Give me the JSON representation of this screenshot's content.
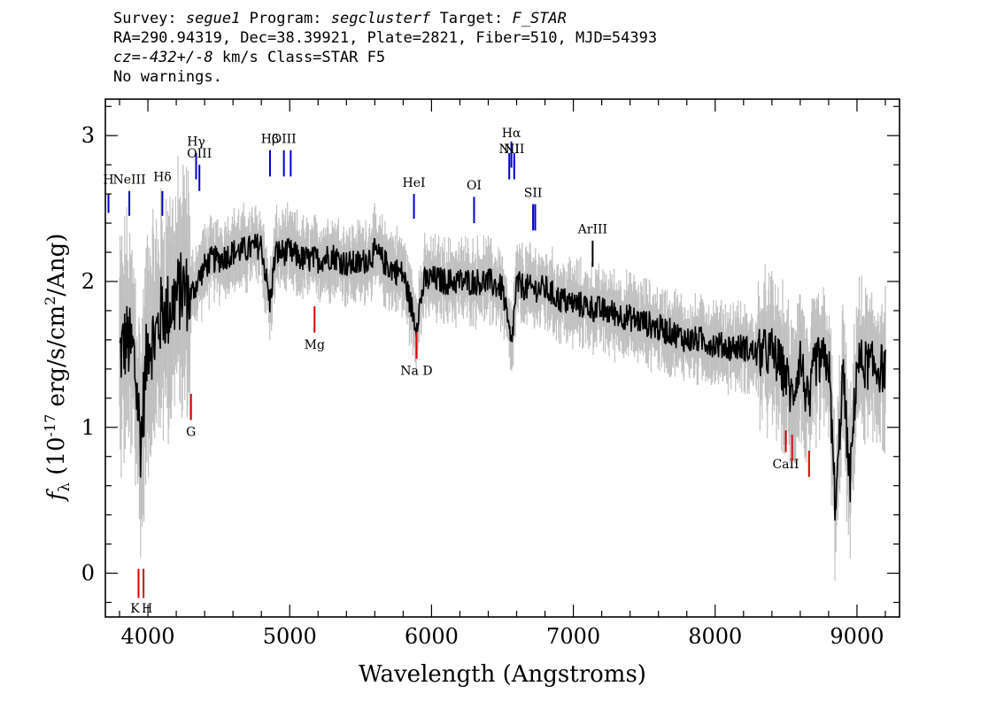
{
  "header": {
    "survey_label": "Survey:",
    "survey": "segue1",
    "program_label": "Program:",
    "program": "segclusterf",
    "target_label": "Target:",
    "target": "F_STAR",
    "line2": "RA=290.94319, Dec=38.39921, Plate=2821, Fiber=510, MJD=54393",
    "cz": "cz=-432+/-8",
    "cz_rest": " km/s Class=STAR F5",
    "warnings": "No warnings."
  },
  "chart_data": {
    "type": "line",
    "xlabel": "Wavelength (Angstroms)",
    "ylabel_prefix": "f",
    "ylabel_sub": "λ",
    "ylabel_rest": " (10",
    "ylabel_exp": "-17",
    "ylabel_units": " erg/s/cm",
    "ylabel_sq": "2",
    "ylabel_end": "/Ang)",
    "xlim": [
      3700,
      9300
    ],
    "ylim": [
      -0.3,
      3.25
    ],
    "xticks": [
      4000,
      5000,
      6000,
      7000,
      8000,
      9000
    ],
    "xtick_labels": [
      "4000",
      "5000",
      "6000",
      "7000",
      "8000",
      "9000"
    ],
    "yticks": [
      0,
      1,
      2,
      3
    ],
    "ytick_labels": [
      "0",
      "1",
      "2",
      "3"
    ],
    "colors": {
      "spectrum": "#000000",
      "error_band": "#c0c0c0",
      "emission": "#0000cc",
      "absorption": "#dd0000",
      "other": "#000000"
    },
    "spectrum": {
      "x": [
        3800,
        3850,
        3900,
        3950,
        4000,
        4050,
        4100,
        4150,
        4200,
        4250,
        4300,
        4350,
        4400,
        4450,
        4500,
        4600,
        4700,
        4800,
        4860,
        4900,
        5000,
        5100,
        5200,
        5300,
        5400,
        5500,
        5600,
        5700,
        5800,
        5890,
        5950,
        6000,
        6100,
        6200,
        6300,
        6400,
        6500,
        6563,
        6600,
        6700,
        6800,
        6900,
        7000,
        7100,
        7200,
        7300,
        7400,
        7500,
        7600,
        7700,
        7800,
        7900,
        8000,
        8100,
        8200,
        8300,
        8400,
        8500,
        8542,
        8600,
        8662,
        8700,
        8800,
        8850,
        8900,
        8950,
        9000,
        9100,
        9200
      ],
      "y": [
        1.5,
        1.6,
        1.5,
        0.9,
        1.6,
        1.6,
        1.8,
        1.8,
        1.9,
        1.95,
        1.9,
        2.0,
        2.1,
        2.15,
        2.15,
        2.2,
        2.22,
        2.25,
        1.85,
        2.2,
        2.2,
        2.15,
        2.15,
        2.18,
        2.12,
        2.12,
        2.2,
        2.1,
        2.05,
        1.7,
        2.0,
        2.02,
        2.0,
        2.0,
        2.0,
        2.0,
        1.95,
        1.55,
        1.98,
        1.95,
        1.95,
        1.88,
        1.85,
        1.83,
        1.8,
        1.78,
        1.75,
        1.72,
        1.68,
        1.65,
        1.6,
        1.6,
        1.57,
        1.55,
        1.55,
        1.5,
        1.52,
        1.35,
        1.2,
        1.48,
        1.1,
        1.45,
        1.45,
        0.4,
        1.4,
        0.6,
        1.45,
        1.42,
        1.4
      ]
    },
    "lines": [
      {
        "label": "H",
        "x": 3722,
        "y0": 2.47,
        "y1": 2.6,
        "kind": "emission",
        "label_y": 2.67
      },
      {
        "label": "NeIII",
        "x": 3869,
        "y0": 2.45,
        "y1": 2.62,
        "kind": "emission",
        "label_y": 2.67
      },
      {
        "label": "Hδ",
        "x": 4102,
        "y0": 2.45,
        "y1": 2.62,
        "kind": "emission",
        "label_y": 2.69
      },
      {
        "label": "Hγ",
        "x": 4340,
        "y0": 2.7,
        "y1": 2.88,
        "kind": "emission",
        "label_y": 2.93
      },
      {
        "label": "OIII",
        "x": 4363,
        "y0": 2.62,
        "y1": 2.8,
        "kind": "emission",
        "label_y": 2.85
      },
      {
        "label": "Hβ",
        "x": 4861,
        "y0": 2.72,
        "y1": 2.9,
        "kind": "emission",
        "label_y": 2.95
      },
      {
        "label": "OIII",
        "x": 4959,
        "y0": 2.72,
        "y1": 2.9,
        "kind": "emission",
        "label_y": 2.95
      },
      {
        "label": "",
        "x": 5007,
        "y0": 2.72,
        "y1": 2.9,
        "kind": "emission",
        "label_y": 2.95
      },
      {
        "label": "HeI",
        "x": 5876,
        "y0": 2.43,
        "y1": 2.6,
        "kind": "emission",
        "label_y": 2.65
      },
      {
        "label": "OI",
        "x": 6300,
        "y0": 2.4,
        "y1": 2.58,
        "kind": "emission",
        "label_y": 2.63
      },
      {
        "label": "NII",
        "x": 6548,
        "y0": 2.7,
        "y1": 2.88,
        "kind": "emission",
        "label_y": 2.88
      },
      {
        "label": "Hα",
        "x": 6563,
        "y0": 2.78,
        "y1": 2.96,
        "kind": "emission",
        "label_y": 2.99
      },
      {
        "label": "NII",
        "x": 6583,
        "y0": 2.7,
        "y1": 2.88,
        "kind": "emission",
        "label_y": 2.88
      },
      {
        "label": "SII",
        "x": 6716,
        "y0": 2.35,
        "y1": 2.53,
        "kind": "emission",
        "label_y": 2.58
      },
      {
        "label": "",
        "x": 6731,
        "y0": 2.35,
        "y1": 2.53,
        "kind": "emission",
        "label_y": 2.58
      },
      {
        "label": "ArIII",
        "x": 7136,
        "y0": 2.1,
        "y1": 2.28,
        "kind": "other",
        "label_y": 2.33
      },
      {
        "label": "K",
        "x": 3934,
        "y0": -0.17,
        "y1": 0.03,
        "kind": "absorption",
        "label_y": -0.27,
        "label_dx": -4
      },
      {
        "label": "H",
        "x": 3969,
        "y0": -0.17,
        "y1": 0.03,
        "kind": "absorption",
        "label_y": -0.27,
        "label_dx": 4
      },
      {
        "label": "G",
        "x": 4304,
        "y0": 1.05,
        "y1": 1.23,
        "kind": "absorption",
        "label_y": 0.94
      },
      {
        "label": "Mg",
        "x": 5175,
        "y0": 1.65,
        "y1": 1.83,
        "kind": "absorption",
        "label_y": 1.54
      },
      {
        "label": "Na D",
        "x": 5894,
        "y0": 1.47,
        "y1": 1.65,
        "kind": "absorption",
        "label_y": 1.36
      },
      {
        "label": "CaII",
        "x": 8498,
        "y0": 0.83,
        "y1": 0.98,
        "kind": "absorption",
        "label_y": 0.72
      },
      {
        "label": "",
        "x": 8542,
        "y0": 0.77,
        "y1": 0.95,
        "kind": "absorption",
        "label_y": 0.72
      },
      {
        "label": "",
        "x": 8662,
        "y0": 0.66,
        "y1": 0.84,
        "kind": "absorption",
        "label_y": 0.72
      }
    ]
  }
}
